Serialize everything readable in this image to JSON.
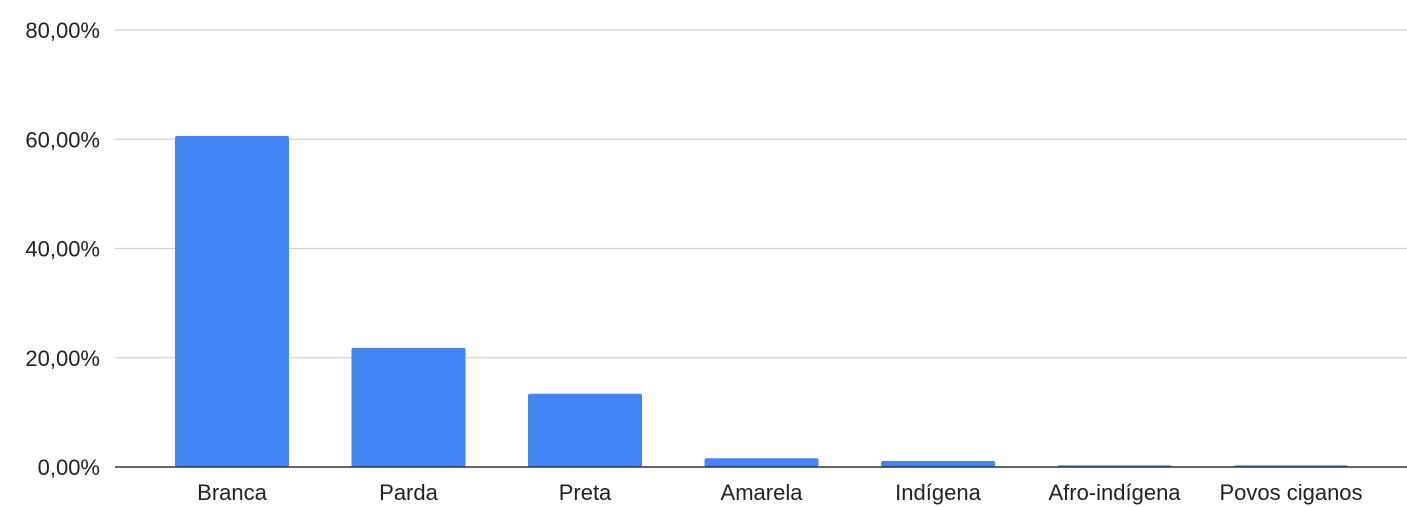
{
  "chart_data": {
    "type": "bar",
    "title": "",
    "xlabel": "",
    "ylabel": "",
    "categories": [
      "Branca",
      "Parda",
      "Preta",
      "Amarela",
      "Indígena",
      "Afro-indígena",
      "Povos ciganos"
    ],
    "values": [
      60.6,
      21.8,
      13.4,
      1.6,
      1.1,
      0.3,
      0.3
    ],
    "ylim": [
      0,
      80
    ],
    "yticks": [
      0,
      20,
      40,
      60,
      80
    ],
    "ytick_labels": [
      "0,00%",
      "20,00%",
      "40,00%",
      "60,00%",
      "80,00%"
    ],
    "bar_color": "#4285f4",
    "grid": true,
    "legend": "none"
  }
}
